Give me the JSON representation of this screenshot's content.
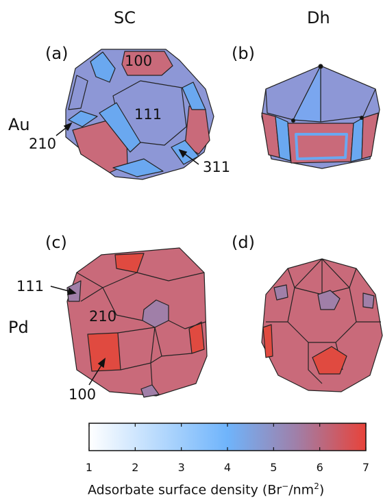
{
  "column_headers": [
    "SC",
    "Dh"
  ],
  "row_headers": [
    "Au",
    "Pd"
  ],
  "panel_labels": [
    "(a)",
    "(b)",
    "(c)",
    "(d)"
  ],
  "facet_labels": {
    "a": {
      "top": "100",
      "center": "111",
      "left": "210",
      "right": "311"
    },
    "c": {
      "left": "111",
      "center": "210",
      "bottom": "100"
    }
  },
  "colorbar": {
    "min": 1,
    "max": 7,
    "ticks": [
      "1",
      "2",
      "3",
      "4",
      "5",
      "6",
      "7"
    ],
    "stops": [
      {
        "value": 1,
        "color": "#ffffff"
      },
      {
        "value": 4,
        "color": "#6fb4fb"
      },
      {
        "value": 7,
        "color": "#e8433a"
      }
    ],
    "title_prefix": "Adsorbate surface density (Br",
    "title_sup1": "−",
    "title_mid": "/nm",
    "title_sup2": "2",
    "title_suffix": ")"
  }
}
